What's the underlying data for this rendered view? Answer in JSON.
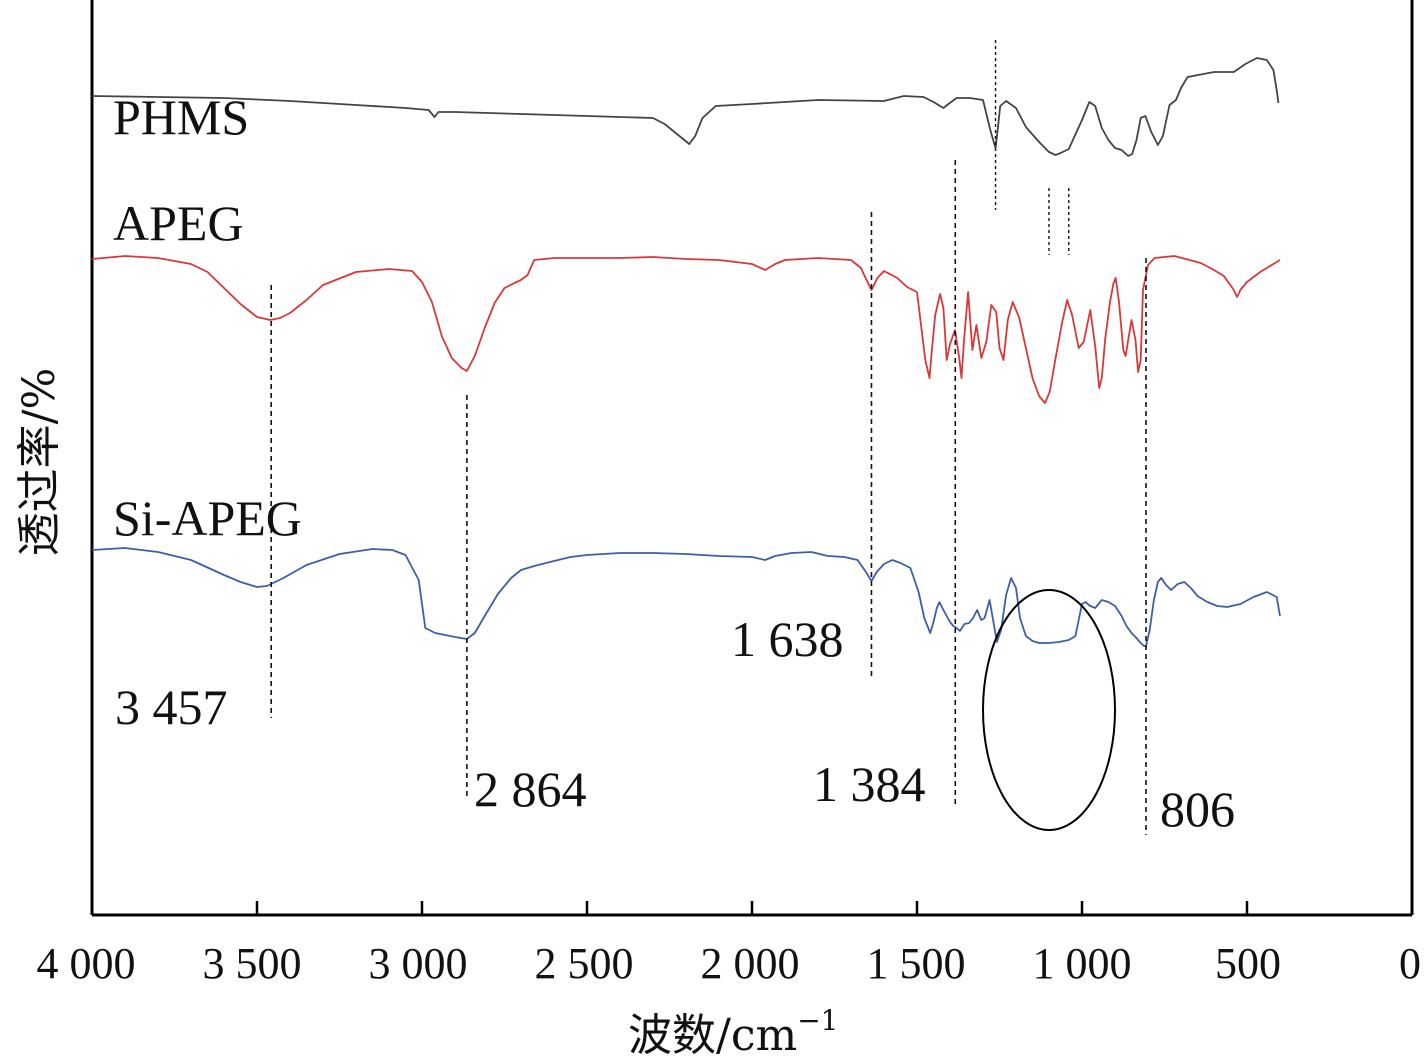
{
  "chart_data": {
    "type": "line",
    "title": "",
    "xlabel": "波数/cm",
    "xlabel_superscript": "−1",
    "ylabel": "透过率/%",
    "xlim": [
      4000,
      0
    ],
    "x_reversed": true,
    "y_ticks_shown": false,
    "xticks": [
      {
        "value": 4000,
        "label": "4 000"
      },
      {
        "value": 3500,
        "label": "3 500"
      },
      {
        "value": 3000,
        "label": "3 000"
      },
      {
        "value": 2500,
        "label": "2 500"
      },
      {
        "value": 2000,
        "label": "2 000"
      },
      {
        "value": 1500,
        "label": "1 500"
      },
      {
        "value": 1000,
        "label": "1 000"
      },
      {
        "value": 500,
        "label": "500"
      },
      {
        "value": 0,
        "label": "0"
      }
    ],
    "series": [
      {
        "name": "PHMS",
        "color": "#444444",
        "points": [
          [
            4000,
            96
          ],
          [
            3800,
            97
          ],
          [
            3600,
            98
          ],
          [
            3400,
            101
          ],
          [
            3200,
            105
          ],
          [
            3050,
            108
          ],
          [
            2980,
            110
          ],
          [
            2962,
            117
          ],
          [
            2950,
            112
          ],
          [
            2900,
            112
          ],
          [
            2700,
            114
          ],
          [
            2500,
            116
          ],
          [
            2300,
            118
          ],
          [
            2265,
            124
          ],
          [
            2220,
            136
          ],
          [
            2190,
            144
          ],
          [
            2172,
            136
          ],
          [
            2150,
            118
          ],
          [
            2110,
            106
          ],
          [
            2000,
            104
          ],
          [
            1800,
            100
          ],
          [
            1600,
            101
          ],
          [
            1540,
            96
          ],
          [
            1480,
            97
          ],
          [
            1450,
            102
          ],
          [
            1420,
            108
          ],
          [
            1405,
            104
          ],
          [
            1380,
            98
          ],
          [
            1340,
            98
          ],
          [
            1300,
            100
          ],
          [
            1278,
            130
          ],
          [
            1262,
            148
          ],
          [
            1255,
            128
          ],
          [
            1248,
            106
          ],
          [
            1230,
            101
          ],
          [
            1200,
            108
          ],
          [
            1170,
            127
          ],
          [
            1130,
            142
          ],
          [
            1100,
            152
          ],
          [
            1080,
            155
          ],
          [
            1065,
            153
          ],
          [
            1040,
            149
          ],
          [
            1000,
            120
          ],
          [
            978,
            102
          ],
          [
            960,
            106
          ],
          [
            940,
            128
          ],
          [
            920,
            140
          ],
          [
            900,
            148
          ],
          [
            880,
            150
          ],
          [
            860,
            156
          ],
          [
            848,
            154
          ],
          [
            835,
            140
          ],
          [
            822,
            118
          ],
          [
            808,
            116
          ],
          [
            790,
            132
          ],
          [
            770,
            145
          ],
          [
            755,
            136
          ],
          [
            735,
            105
          ],
          [
            715,
            100
          ],
          [
            700,
            88
          ],
          [
            680,
            77
          ],
          [
            600,
            72
          ],
          [
            540,
            72
          ],
          [
            505,
            64
          ],
          [
            470,
            58
          ],
          [
            440,
            60
          ],
          [
            420,
            70
          ],
          [
            410,
            90
          ],
          [
            405,
            103
          ]
        ]
      },
      {
        "name": "APEG",
        "color": "#d9383a",
        "points": [
          [
            4000,
            29
          ],
          [
            3900,
            26
          ],
          [
            3800,
            28
          ],
          [
            3700,
            34
          ],
          [
            3650,
            42
          ],
          [
            3600,
            58
          ],
          [
            3550,
            74
          ],
          [
            3500,
            87
          ],
          [
            3460,
            90
          ],
          [
            3430,
            88
          ],
          [
            3400,
            83
          ],
          [
            3350,
            70
          ],
          [
            3300,
            55
          ],
          [
            3200,
            42
          ],
          [
            3100,
            39
          ],
          [
            3030,
            41
          ],
          [
            3000,
            52
          ],
          [
            2970,
            72
          ],
          [
            2940,
            106
          ],
          [
            2910,
            128
          ],
          [
            2880,
            138
          ],
          [
            2864,
            141
          ],
          [
            2840,
            126
          ],
          [
            2810,
            98
          ],
          [
            2780,
            73
          ],
          [
            2750,
            58
          ],
          [
            2720,
            53
          ],
          [
            2700,
            50
          ],
          [
            2680,
            45
          ],
          [
            2660,
            30
          ],
          [
            2600,
            28
          ],
          [
            2500,
            28
          ],
          [
            2400,
            28
          ],
          [
            2300,
            27
          ],
          [
            2200,
            29
          ],
          [
            2100,
            30
          ],
          [
            2000,
            34
          ],
          [
            1960,
            40
          ],
          [
            1930,
            34
          ],
          [
            1900,
            30
          ],
          [
            1800,
            28
          ],
          [
            1700,
            30
          ],
          [
            1670,
            38
          ],
          [
            1650,
            52
          ],
          [
            1638,
            60
          ],
          [
            1620,
            48
          ],
          [
            1600,
            41
          ],
          [
            1560,
            48
          ],
          [
            1530,
            57
          ],
          [
            1500,
            62
          ],
          [
            1475,
            130
          ],
          [
            1462,
            148
          ],
          [
            1455,
            120
          ],
          [
            1445,
            85
          ],
          [
            1430,
            64
          ],
          [
            1420,
            78
          ],
          [
            1410,
            130
          ],
          [
            1400,
            114
          ],
          [
            1385,
            100
          ],
          [
            1372,
            128
          ],
          [
            1365,
            148
          ],
          [
            1358,
            112
          ],
          [
            1345,
            62
          ],
          [
            1332,
            120
          ],
          [
            1320,
            95
          ],
          [
            1305,
            128
          ],
          [
            1290,
            112
          ],
          [
            1275,
            75
          ],
          [
            1260,
            82
          ],
          [
            1250,
            118
          ],
          [
            1238,
            130
          ],
          [
            1225,
            90
          ],
          [
            1210,
            72
          ],
          [
            1190,
            88
          ],
          [
            1170,
            118
          ],
          [
            1150,
            148
          ],
          [
            1130,
            166
          ],
          [
            1112,
            173
          ],
          [
            1098,
            162
          ],
          [
            1080,
            128
          ],
          [
            1060,
            92
          ],
          [
            1045,
            70
          ],
          [
            1030,
            85
          ],
          [
            1010,
            118
          ],
          [
            995,
            112
          ],
          [
            975,
            80
          ],
          [
            960,
            116
          ],
          [
            948,
            158
          ],
          [
            940,
            148
          ],
          [
            930,
            110
          ],
          [
            915,
            72
          ],
          [
            905,
            54
          ],
          [
            898,
            48
          ],
          [
            888,
            72
          ],
          [
            875,
            120
          ],
          [
            868,
            126
          ],
          [
            860,
            110
          ],
          [
            850,
            90
          ],
          [
            838,
            110
          ],
          [
            830,
            142
          ],
          [
            822,
            130
          ],
          [
            815,
            60
          ],
          [
            800,
            35
          ],
          [
            780,
            28
          ],
          [
            720,
            26
          ],
          [
            640,
            33
          ],
          [
            600,
            40
          ],
          [
            570,
            46
          ],
          [
            540,
            60
          ],
          [
            530,
            67
          ],
          [
            520,
            60
          ],
          [
            500,
            52
          ],
          [
            460,
            42
          ],
          [
            420,
            34
          ],
          [
            400,
            30
          ]
        ]
      },
      {
        "name": "Si-APEG",
        "color": "#3c5fa8",
        "points": [
          [
            4000,
            60
          ],
          [
            3900,
            58
          ],
          [
            3800,
            62
          ],
          [
            3700,
            70
          ],
          [
            3600,
            85
          ],
          [
            3550,
            92
          ],
          [
            3500,
            97
          ],
          [
            3470,
            96
          ],
          [
            3420,
            88
          ],
          [
            3350,
            75
          ],
          [
            3250,
            64
          ],
          [
            3150,
            59
          ],
          [
            3090,
            60
          ],
          [
            3050,
            65
          ],
          [
            3010,
            90
          ],
          [
            2990,
            138
          ],
          [
            2960,
            143
          ],
          [
            2900,
            147
          ],
          [
            2864,
            149
          ],
          [
            2840,
            143
          ],
          [
            2810,
            126
          ],
          [
            2770,
            104
          ],
          [
            2730,
            88
          ],
          [
            2700,
            80
          ],
          [
            2660,
            76
          ],
          [
            2600,
            71
          ],
          [
            2550,
            67
          ],
          [
            2500,
            65
          ],
          [
            2400,
            63
          ],
          [
            2300,
            63
          ],
          [
            2200,
            64
          ],
          [
            2100,
            66
          ],
          [
            2000,
            67
          ],
          [
            1960,
            70
          ],
          [
            1930,
            66
          ],
          [
            1880,
            63
          ],
          [
            1820,
            62
          ],
          [
            1770,
            66
          ],
          [
            1720,
            67
          ],
          [
            1680,
            70
          ],
          [
            1655,
            82
          ],
          [
            1638,
            91
          ],
          [
            1622,
            82
          ],
          [
            1600,
            74
          ],
          [
            1575,
            70
          ],
          [
            1550,
            73
          ],
          [
            1520,
            78
          ],
          [
            1495,
            102
          ],
          [
            1478,
            128
          ],
          [
            1460,
            143
          ],
          [
            1450,
            132
          ],
          [
            1440,
            118
          ],
          [
            1432,
            112
          ],
          [
            1420,
            120
          ],
          [
            1410,
            126
          ],
          [
            1400,
            132
          ],
          [
            1390,
            136
          ],
          [
            1380,
            138
          ],
          [
            1370,
            141
          ],
          [
            1356,
            134
          ],
          [
            1342,
            133
          ],
          [
            1330,
            128
          ],
          [
            1318,
            120
          ],
          [
            1305,
            130
          ],
          [
            1295,
            128
          ],
          [
            1280,
            110
          ],
          [
            1258,
            152
          ],
          [
            1245,
            140
          ],
          [
            1230,
            105
          ],
          [
            1215,
            88
          ],
          [
            1200,
            98
          ],
          [
            1188,
            128
          ],
          [
            1170,
            146
          ],
          [
            1150,
            151
          ],
          [
            1130,
            153
          ],
          [
            1100,
            153
          ],
          [
            1070,
            152
          ],
          [
            1040,
            150
          ],
          [
            1020,
            146
          ],
          [
            1010,
            130
          ],
          [
            1000,
            114
          ],
          [
            990,
            112
          ],
          [
            975,
            116
          ],
          [
            960,
            118
          ],
          [
            940,
            110
          ],
          [
            920,
            112
          ],
          [
            900,
            116
          ],
          [
            880,
            126
          ],
          [
            865,
            136
          ],
          [
            850,
            143
          ],
          [
            835,
            148
          ],
          [
            825,
            152
          ],
          [
            812,
            156
          ],
          [
            806,
            156
          ],
          [
            795,
            140
          ],
          [
            782,
            110
          ],
          [
            770,
            92
          ],
          [
            760,
            88
          ],
          [
            745,
            95
          ],
          [
            730,
            100
          ],
          [
            710,
            94
          ],
          [
            690,
            92
          ],
          [
            670,
            98
          ],
          [
            650,
            106
          ],
          [
            620,
            112
          ],
          [
            590,
            116
          ],
          [
            560,
            117
          ],
          [
            520,
            114
          ],
          [
            480,
            107
          ],
          [
            440,
            102
          ],
          [
            410,
            107
          ],
          [
            400,
            126
          ]
        ]
      }
    ],
    "annotations": [
      {
        "label": "3 457",
        "x": 3457
      },
      {
        "label": "2 864",
        "x": 2864
      },
      {
        "label": "1 638",
        "x": 1638
      },
      {
        "label": "1 384",
        "x": 1384
      },
      {
        "label": "806",
        "x": 806
      }
    ],
    "highlight_ellipse": {
      "x_center": 1100,
      "x_range": [
        1300,
        900
      ],
      "series": "Si-APEG"
    }
  }
}
